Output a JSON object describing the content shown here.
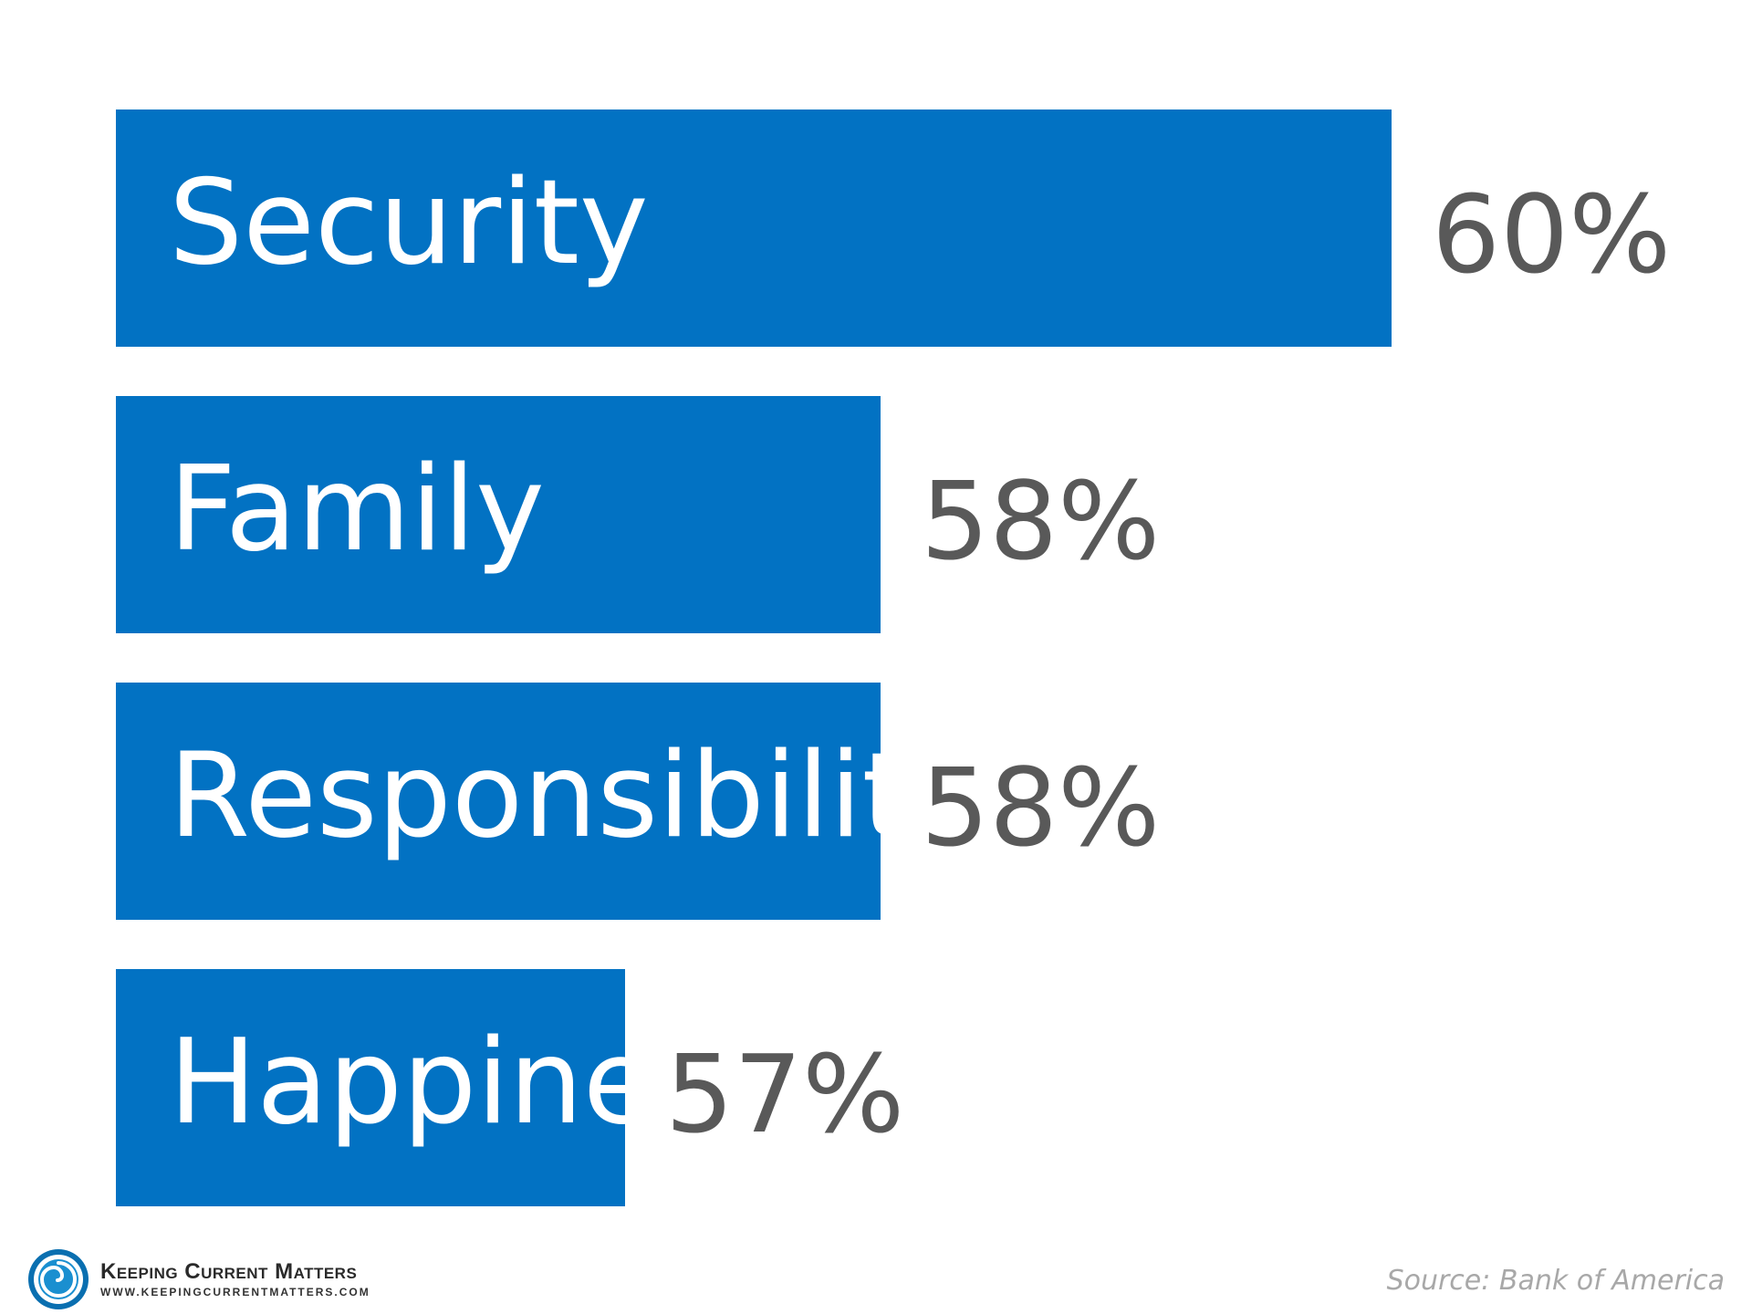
{
  "chart_data": {
    "type": "bar",
    "orientation": "horizontal",
    "categories": [
      "Security",
      "Family",
      "Responsibility",
      "Happiness"
    ],
    "values": [
      60,
      58,
      58,
      57
    ],
    "value_labels": [
      "60%",
      "58%",
      "58%",
      "57%"
    ],
    "unit": "%",
    "grid": false,
    "legend": "none"
  },
  "colors": {
    "bar": "#0272c3",
    "bar_text": "#ffffff",
    "value_text": "#595959",
    "source_text": "#a8a8a8"
  },
  "footer": {
    "brand_name": "Keeping Current Matters",
    "brand_url": "WWW.KEEPINGCURRENTMATTERS.COM",
    "source": "Source: Bank of America",
    "logo_icon": "swirl-logo-icon"
  }
}
